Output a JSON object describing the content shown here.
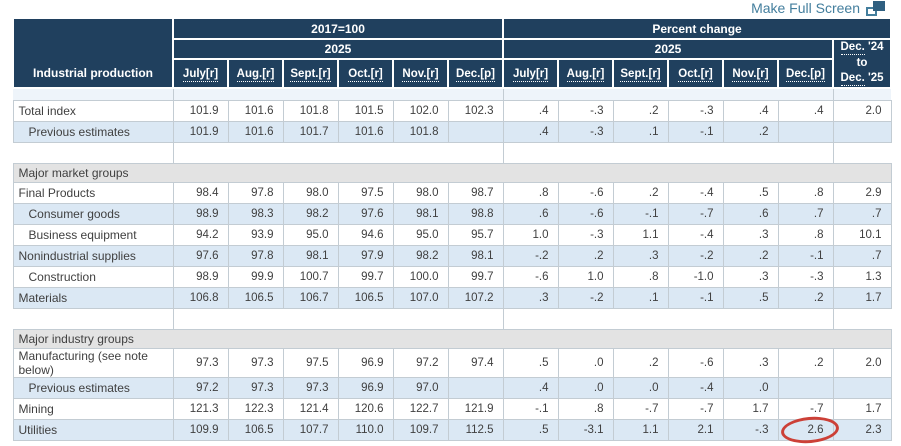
{
  "page": {
    "make_full_screen_label": "Make Full Screen"
  },
  "table": {
    "corner_label": "Industrial production",
    "index_group_header": "2017=100",
    "percent_group_header": "Percent change",
    "index_year": "2025",
    "percent_year": "2025",
    "months": [
      "July[r]",
      "Aug.[r]",
      "Sept.[r]",
      "Oct.[r]",
      "Nov.[r]",
      "Dec.[p]"
    ],
    "change_header": {
      "line1_dotted": "Dec.",
      "line1_rest": " '24 to",
      "line2_dotted": "Dec.",
      "line2_rest": " '25"
    },
    "rows": [
      {
        "type": "spacer-thin"
      },
      {
        "type": "data",
        "label": "Total index",
        "indent": false,
        "bg": "white",
        "index": [
          "101.9",
          "101.6",
          "101.8",
          "101.5",
          "102.0",
          "102.3"
        ],
        "pct": [
          ".4",
          "-.3",
          ".2",
          "-.3",
          ".4",
          ".4"
        ],
        "change": "2.0"
      },
      {
        "type": "data",
        "label": "Previous estimates",
        "indent": true,
        "bg": "blue",
        "index": [
          "101.9",
          "101.6",
          "101.7",
          "101.6",
          "101.8",
          ""
        ],
        "pct": [
          ".4",
          "-.3",
          ".1",
          "-.1",
          ".2",
          ""
        ],
        "change": ""
      },
      {
        "type": "spacer"
      },
      {
        "type": "section",
        "label": "Major market groups"
      },
      {
        "type": "data",
        "label": "Final Products",
        "indent": false,
        "bg": "white",
        "index": [
          "98.4",
          "97.8",
          "98.0",
          "97.5",
          "98.0",
          "98.7"
        ],
        "pct": [
          ".8",
          "-.6",
          ".2",
          "-.4",
          ".5",
          ".8"
        ],
        "change": "2.9"
      },
      {
        "type": "data",
        "label": "Consumer goods",
        "indent": true,
        "bg": "blue",
        "index": [
          "98.9",
          "98.3",
          "98.2",
          "97.6",
          "98.1",
          "98.8"
        ],
        "pct": [
          ".6",
          "-.6",
          "-.1",
          "-.7",
          ".6",
          ".7"
        ],
        "change": ".7"
      },
      {
        "type": "data",
        "label": "Business equipment",
        "indent": true,
        "bg": "white",
        "index": [
          "94.2",
          "93.9",
          "95.0",
          "94.6",
          "95.0",
          "95.7"
        ],
        "pct": [
          "1.0",
          "-.3",
          "1.1",
          "-.4",
          ".3",
          ".8"
        ],
        "change": "10.1"
      },
      {
        "type": "data",
        "label": "Nonindustrial supplies",
        "indent": false,
        "bg": "blue",
        "index": [
          "97.6",
          "97.8",
          "98.1",
          "97.9",
          "98.2",
          "98.1"
        ],
        "pct": [
          "-.2",
          ".2",
          ".3",
          "-.2",
          ".2",
          "-.1"
        ],
        "change": ".7"
      },
      {
        "type": "data",
        "label": "Construction",
        "indent": true,
        "bg": "white",
        "index": [
          "98.9",
          "99.9",
          "100.7",
          "99.7",
          "100.0",
          "99.7"
        ],
        "pct": [
          "-.6",
          "1.0",
          ".8",
          "-1.0",
          ".3",
          "-.3"
        ],
        "change": "1.3"
      },
      {
        "type": "data",
        "label": "Materials",
        "indent": false,
        "bg": "blue",
        "index": [
          "106.8",
          "106.5",
          "106.7",
          "106.5",
          "107.0",
          "107.2"
        ],
        "pct": [
          ".3",
          "-.2",
          ".1",
          "-.1",
          ".5",
          ".2"
        ],
        "change": "1.7"
      },
      {
        "type": "spacer"
      },
      {
        "type": "section",
        "label": "Major industry groups"
      },
      {
        "type": "data",
        "label": "Manufacturing (see note below)",
        "indent": false,
        "bg": "white",
        "index": [
          "97.3",
          "97.3",
          "97.5",
          "96.9",
          "97.2",
          "97.4"
        ],
        "pct": [
          ".5",
          ".0",
          ".2",
          "-.6",
          ".3",
          ".2"
        ],
        "change": "2.0"
      },
      {
        "type": "data",
        "label": "Previous estimates",
        "indent": true,
        "bg": "blue",
        "index": [
          "97.2",
          "97.3",
          "97.3",
          "96.9",
          "97.0",
          ""
        ],
        "pct": [
          ".4",
          ".0",
          ".0",
          "-.4",
          ".0",
          ""
        ],
        "change": ""
      },
      {
        "type": "data",
        "label": "Mining",
        "indent": false,
        "bg": "white",
        "index": [
          "121.3",
          "122.3",
          "121.4",
          "120.6",
          "122.7",
          "121.9"
        ],
        "pct": [
          "-.1",
          ".8",
          "-.7",
          "-.7",
          "1.7",
          "-.7"
        ],
        "change": "1.7"
      },
      {
        "type": "data",
        "label": "Utilities",
        "indent": false,
        "bg": "blue",
        "index": [
          "109.9",
          "106.5",
          "107.7",
          "110.0",
          "109.7",
          "112.5"
        ],
        "pct": [
          ".5",
          "-3.1",
          "1.1",
          "2.1",
          "-.3",
          "2.6"
        ],
        "change": "2.3",
        "circled_pct_index": 5
      }
    ],
    "annotation": {
      "shape": "red-ellipse",
      "color": "#cc4037",
      "marks_value": "2.6"
    }
  }
}
